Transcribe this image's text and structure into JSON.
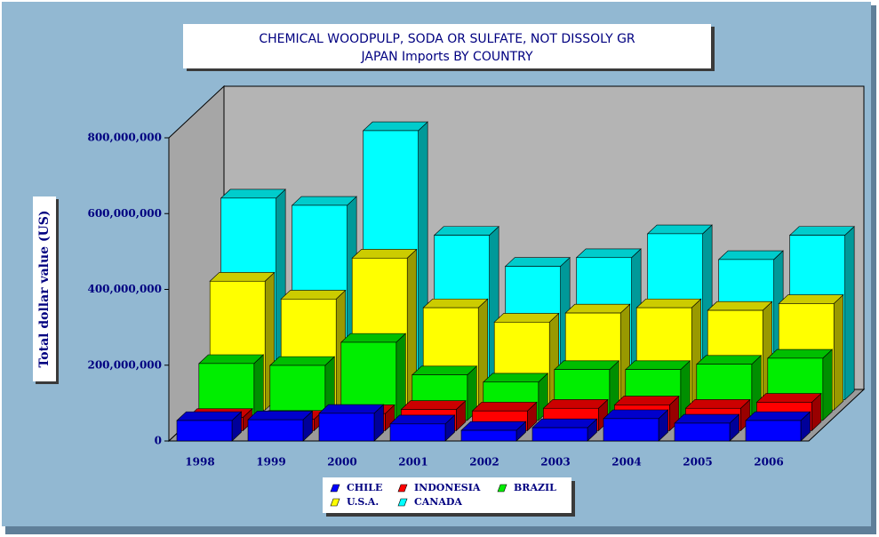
{
  "chart_data": {
    "type": "bar3d",
    "title": "CHEMICAL WOODPULP, SODA OR SULFATE, NOT DISSOLY GR",
    "subtitle": "JAPAN Imports BY COUNTRY",
    "y_label": "Total dollar value (US)",
    "categories": [
      "1998",
      "1999",
      "2000",
      "2001",
      "2002",
      "2003",
      "2004",
      "2005",
      "2006"
    ],
    "series": [
      {
        "name": "CHILE",
        "color": "#0000ff",
        "values": [
          54000000,
          56000000,
          73000000,
          45000000,
          28000000,
          35000000,
          59000000,
          47000000,
          54000000
        ]
      },
      {
        "name": "INDONESIA",
        "color": "#ff0000",
        "values": [
          35000000,
          30000000,
          45000000,
          56000000,
          52000000,
          59000000,
          68000000,
          59000000,
          75000000
        ]
      },
      {
        "name": "BRAZIL",
        "color": "#00ee00",
        "values": [
          150000000,
          145000000,
          206000000,
          120000000,
          101000000,
          134000000,
          134000000,
          148000000,
          164000000
        ]
      },
      {
        "name": "U.S.A.",
        "color": "#ffff00",
        "values": [
          340000000,
          293000000,
          401000000,
          270000000,
          232000000,
          256000000,
          270000000,
          263000000,
          281000000
        ]
      },
      {
        "name": "CANADA",
        "color": "#00ffff",
        "values": [
          532000000,
          513000000,
          710000000,
          434000000,
          352000000,
          375000000,
          438000000,
          370000000,
          434000000
        ]
      }
    ],
    "ylim": [
      0,
      800000000
    ],
    "yticks": [
      0,
      {
        "value": 200000000,
        "label": "200,000,000"
      },
      {
        "value": 400000000,
        "label": "400,000,000"
      },
      {
        "value": 600000000,
        "label": "600,000,000"
      },
      {
        "value": 800000000,
        "label": "800,000,000"
      }
    ]
  }
}
